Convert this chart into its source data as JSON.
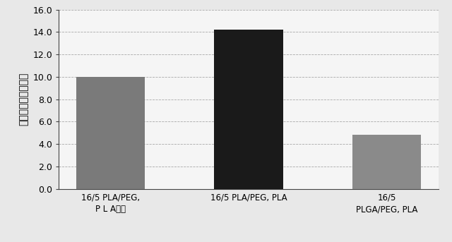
{
  "categories": [
    "16/5 PLA/PEG,\nP L Aなし",
    "16/5 PLA/PEG, PLA",
    "16/5\nPLGA/PEG, PLA"
  ],
  "values": [
    10.0,
    14.2,
    4.8
  ],
  "bar_colors": [
    "#7a7a7a",
    "#1a1a1a",
    "#8a8a8a"
  ],
  "ylabel": "テムシロリムス貨荷",
  "ylim": [
    0,
    16.0
  ],
  "yticks": [
    0.0,
    2.0,
    4.0,
    6.0,
    8.0,
    10.0,
    12.0,
    14.0,
    16.0
  ],
  "background_color": "#e8e8e8",
  "plot_bg_color": "#f5f5f5",
  "grid_color": "#888888",
  "bar_width": 0.5,
  "ylabel_fontsize": 10,
  "tick_fontsize": 9,
  "xlabel_fontsize": 8.5
}
